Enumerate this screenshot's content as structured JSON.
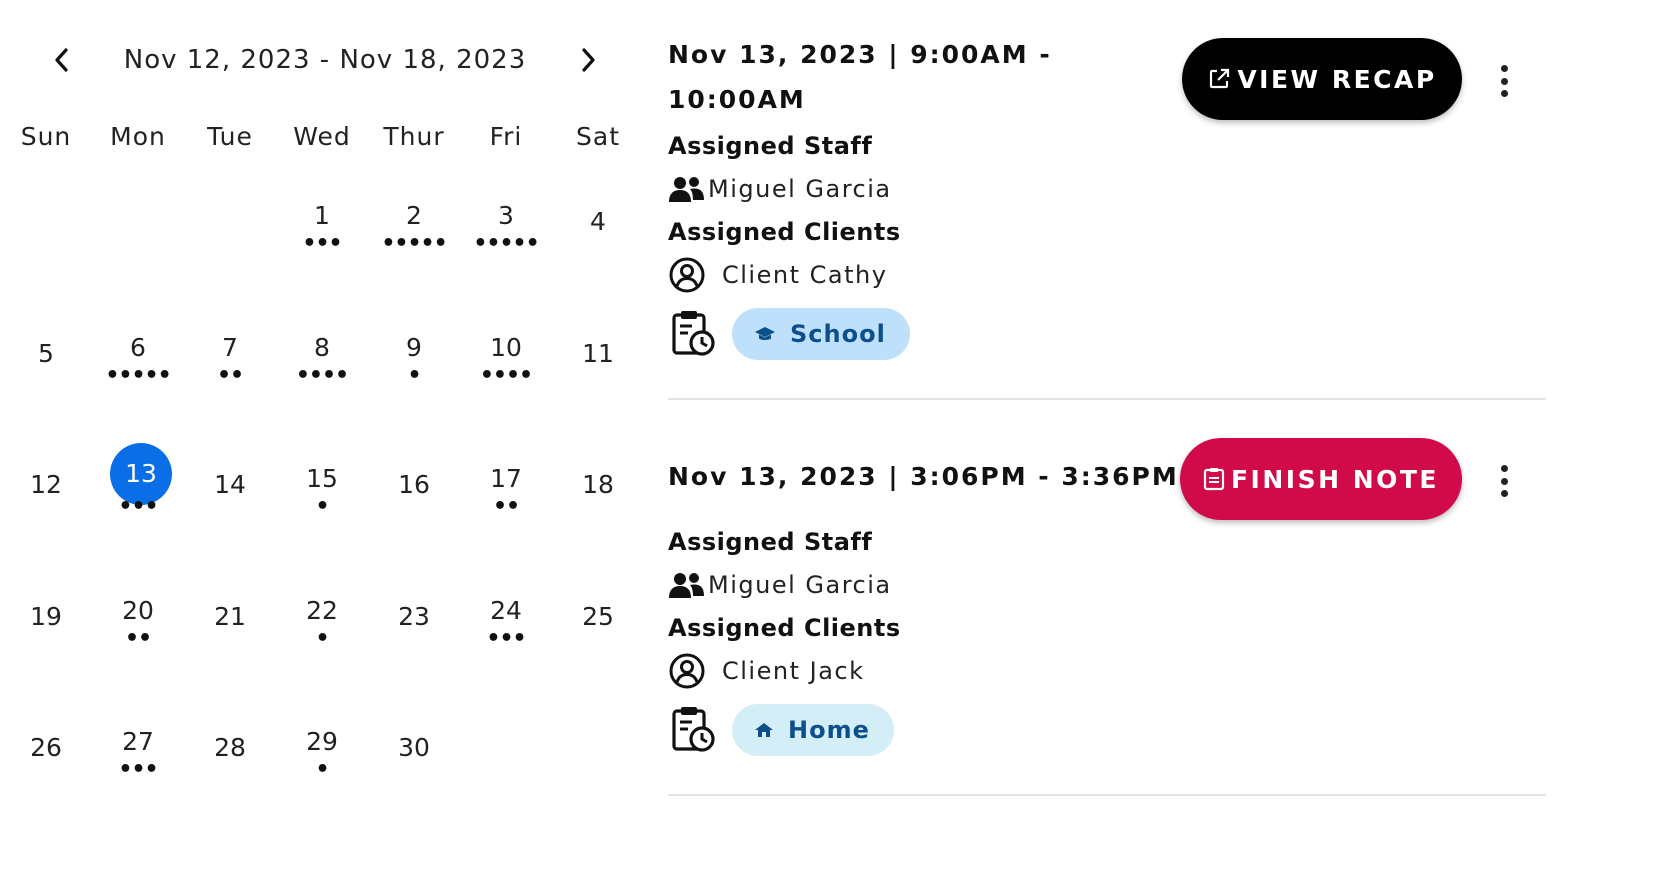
{
  "calendar": {
    "range": "Nov 12, 2023 - Nov 18, 2023",
    "weekdays": [
      "Sun",
      "Mon",
      "Tue",
      "Wed",
      "Thur",
      "Fri",
      "Sat"
    ],
    "weeks": [
      [
        {
          "d": "",
          "dots": ""
        },
        {
          "d": "",
          "dots": ""
        },
        {
          "d": "",
          "dots": ""
        },
        {
          "d": "1",
          "dots": "•••"
        },
        {
          "d": "2",
          "dots": "•••••"
        },
        {
          "d": "3",
          "dots": "•••••"
        },
        {
          "d": "4",
          "dots": ""
        }
      ],
      [
        {
          "d": "5",
          "dots": ""
        },
        {
          "d": "6",
          "dots": "•••••"
        },
        {
          "d": "7",
          "dots": "••"
        },
        {
          "d": "8",
          "dots": "••••"
        },
        {
          "d": "9",
          "dots": "•"
        },
        {
          "d": "10",
          "dots": "••••"
        },
        {
          "d": "11",
          "dots": ""
        }
      ],
      [
        {
          "d": "12",
          "dots": ""
        },
        {
          "d": "13",
          "dots": "•••",
          "selected": true
        },
        {
          "d": "14",
          "dots": ""
        },
        {
          "d": "15",
          "dots": "•"
        },
        {
          "d": "16",
          "dots": ""
        },
        {
          "d": "17",
          "dots": "••"
        },
        {
          "d": "18",
          "dots": ""
        }
      ],
      [
        {
          "d": "19",
          "dots": ""
        },
        {
          "d": "20",
          "dots": "••"
        },
        {
          "d": "21",
          "dots": ""
        },
        {
          "d": "22",
          "dots": "•"
        },
        {
          "d": "23",
          "dots": ""
        },
        {
          "d": "24",
          "dots": "•••"
        },
        {
          "d": "25",
          "dots": ""
        }
      ],
      [
        {
          "d": "26",
          "dots": ""
        },
        {
          "d": "27",
          "dots": "•••"
        },
        {
          "d": "28",
          "dots": ""
        },
        {
          "d": "29",
          "dots": "•"
        },
        {
          "d": "30",
          "dots": ""
        },
        {
          "d": "",
          "dots": ""
        },
        {
          "d": "",
          "dots": ""
        }
      ]
    ],
    "selected_color": "#0a6fe6"
  },
  "appointments": [
    {
      "time": "Nov 13, 2023 | 9:00AM - 10:00AM",
      "staff_label": "Assigned Staff",
      "staff": "Miguel Garcia",
      "clients_label": "Assigned Clients",
      "client": "Client Cathy",
      "location": "School",
      "location_icon": "graduation-cap-icon",
      "location_bg": "#bfe0fb",
      "location_fg": "#0d4f8b",
      "button": "VIEW RECAP",
      "button_icon": "external-link-icon",
      "button_color": "#000000"
    },
    {
      "time": "Nov 13, 2023 | 3:06PM - 3:36PM",
      "staff_label": "Assigned Staff",
      "staff": "Miguel Garcia",
      "clients_label": "Assigned Clients",
      "client": "Client Jack",
      "location": "Home",
      "location_icon": "home-icon",
      "location_bg": "#d4eef7",
      "location_fg": "#0d4f8b",
      "button": "FINISH NOTE",
      "button_icon": "clipboard-icon",
      "button_color": "#d10a4a"
    }
  ]
}
